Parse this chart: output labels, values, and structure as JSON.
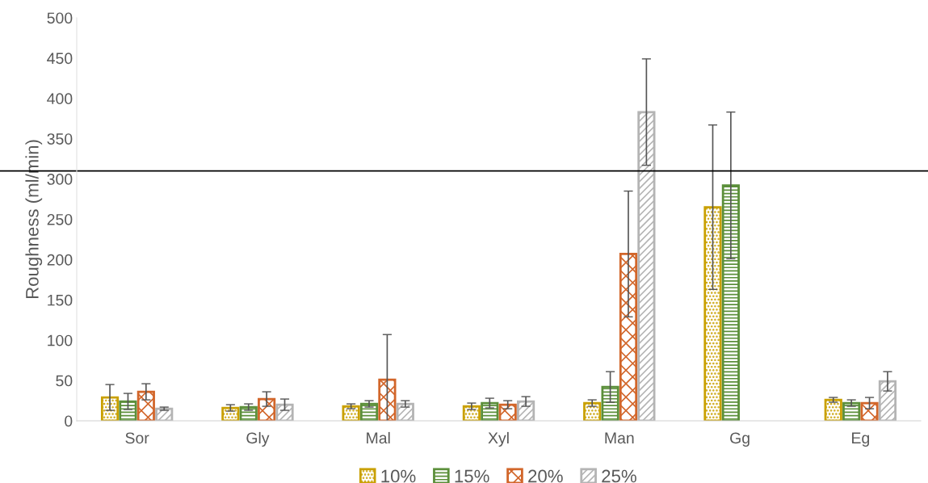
{
  "chart_data": {
    "type": "bar",
    "ylabel": "Roughness (ml/min)",
    "categories": [
      "Sor",
      "Gly",
      "Mal",
      "Xyl",
      "Man",
      "Gg",
      "Eg"
    ],
    "series": [
      {
        "name": "10%",
        "color": "#c9a000",
        "values": [
          29,
          16,
          18,
          18,
          22,
          265,
          26
        ],
        "errors": [
          16,
          4,
          3,
          4,
          4,
          102,
          3
        ]
      },
      {
        "name": "15%",
        "color": "#5b8f3a",
        "values": [
          24,
          17,
          21,
          22,
          42,
          292,
          22
        ],
        "errors": [
          10,
          4,
          4,
          6,
          19,
          91,
          4
        ]
      },
      {
        "name": "20%",
        "color": "#d2662a",
        "values": [
          36,
          27,
          51,
          20,
          207,
          null,
          22
        ],
        "errors": [
          10,
          9,
          56,
          5,
          78,
          null,
          7
        ]
      },
      {
        "name": "25%",
        "color": "#b4b4b4",
        "values": [
          15,
          20,
          21,
          24,
          383,
          null,
          49
        ],
        "errors": [
          2,
          7,
          4,
          6,
          66,
          null,
          12
        ]
      }
    ],
    "ylim": [
      0,
      500
    ],
    "yticks": [
      0,
      50,
      100,
      150,
      200,
      250,
      300,
      350,
      400,
      450,
      500
    ],
    "ref_lines": [
      {
        "axis": "y",
        "value": 310,
        "color": "#000000"
      }
    ],
    "grid": false,
    "legend": "bottom"
  }
}
